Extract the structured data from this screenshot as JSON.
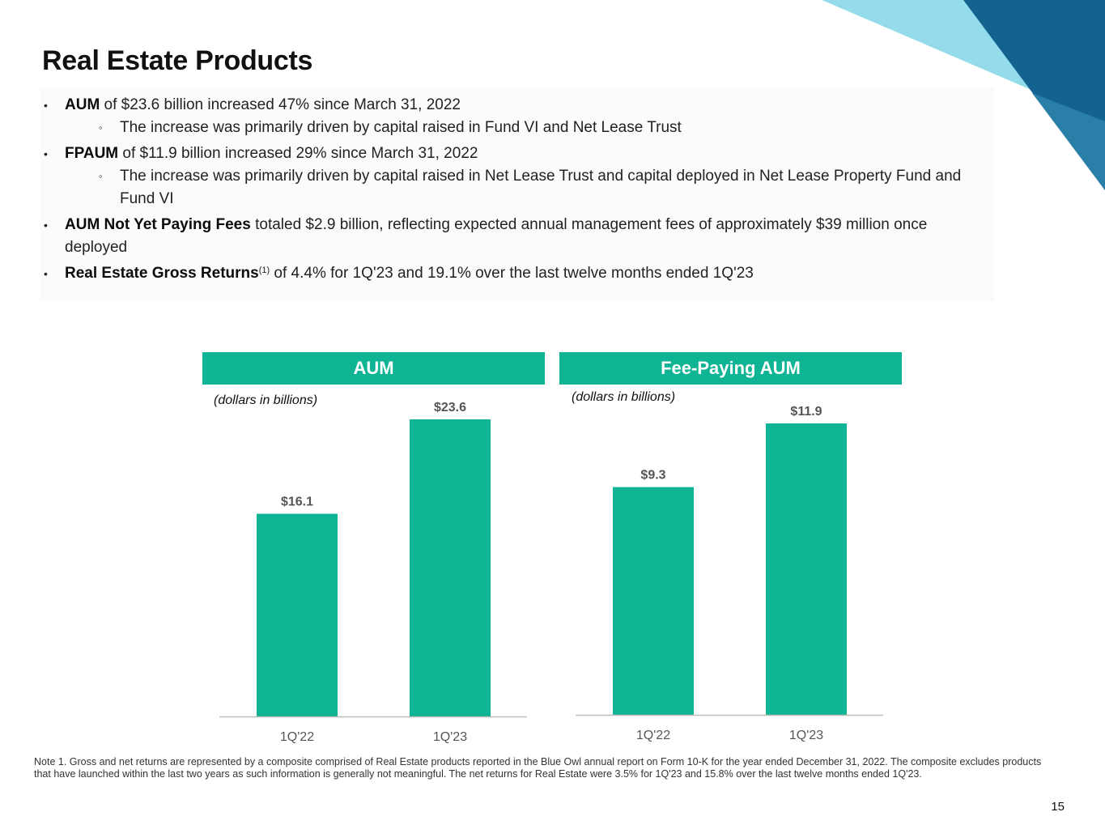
{
  "page": {
    "title": "Real Estate Products",
    "page_number": "15"
  },
  "bullets": [
    {
      "bold": "AUM",
      "text": " of $23.6 billion increased 47% since March 31, 2022",
      "sub": [
        "The increase was primarily driven by capital raised in Fund VI and Net Lease Trust"
      ]
    },
    {
      "bold": "FPAUM",
      "text": " of $11.9 billion increased 29% since March 31, 2022",
      "sub": [
        "The increase was primarily driven by capital raised in Net Lease Trust and capital deployed in Net Lease Property Fund and Fund VI"
      ]
    },
    {
      "bold": "AUM Not Yet Paying Fees",
      "text": " totaled $2.9 billion, reflecting expected annual management fees of approximately $39 million once deployed",
      "sub": []
    },
    {
      "bold": "Real Estate Gross Returns",
      "sup": "(1)",
      "text": " of 4.4% for 1Q'23 and 19.1% over the last twelve months ended 1Q'23",
      "sub": []
    }
  ],
  "chart_data": [
    {
      "type": "bar",
      "title": "AUM",
      "subtitle": "(dollars in billions)",
      "categories": [
        "1Q'22",
        "1Q'23"
      ],
      "values": [
        16.1,
        23.6
      ],
      "value_labels": [
        "$16.1",
        "$23.6"
      ],
      "ylim": [
        0,
        25
      ],
      "bar_color": "#0fb494"
    },
    {
      "type": "bar",
      "title": "Fee-Paying AUM",
      "subtitle": "(dollars in billions)",
      "categories": [
        "1Q'22",
        "1Q'23"
      ],
      "values": [
        9.3,
        11.9
      ],
      "value_labels": [
        "$9.3",
        "$11.9"
      ],
      "ylim": [
        0,
        12.6
      ],
      "bar_color": "#0fb494"
    }
  ],
  "footnote": "Note 1. Gross and net returns are represented by a composite comprised of Real Estate products reported in the Blue Owl annual report on Form 10-K for the year ended December 31, 2022. The composite excludes products that have launched within the last two years as such information is generally not meaningful. The net returns for Real Estate were 3.5% for 1Q'23 and 15.8% over the last twelve months ended 1Q'23.",
  "colors": {
    "accent": "#0fb494",
    "corner_light": "#94dcec",
    "corner_dark": "#11608f"
  }
}
